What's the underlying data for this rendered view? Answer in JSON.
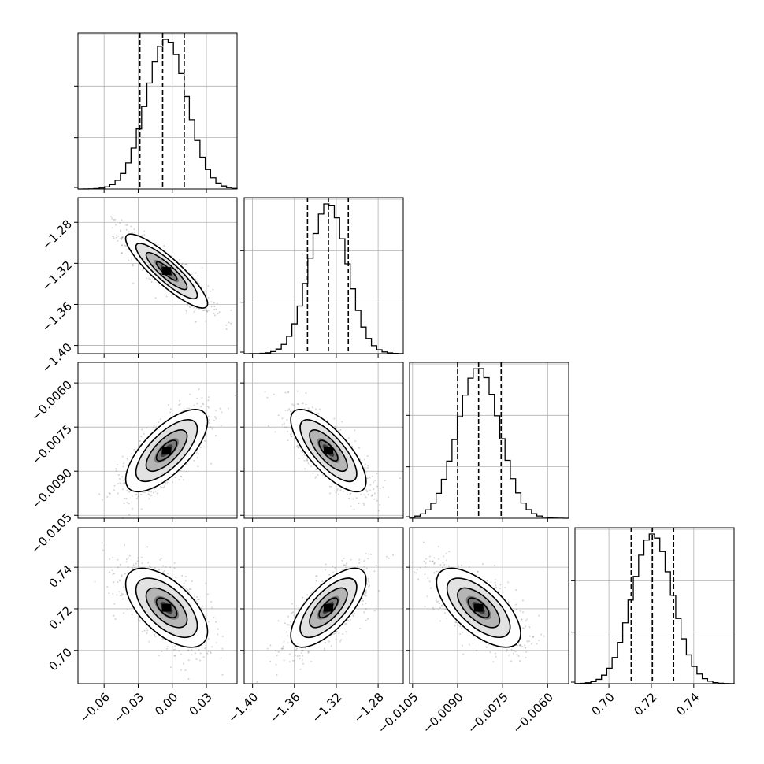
{
  "chart_data": {
    "type": "corner",
    "n_params": 4,
    "grid": true,
    "colors": {
      "hist": "#000000",
      "scatter": "#808080",
      "grid": "#b0b0b0",
      "contour": "#000000"
    },
    "params": [
      {
        "index": 0,
        "range": [
          -0.083,
          0.057
        ],
        "ticks": [
          "−0.06",
          "−0.03",
          "0.00",
          "0.03"
        ],
        "tick_values": [
          -0.06,
          -0.03,
          0.0,
          0.03
        ],
        "mean": -0.005,
        "sd": 0.018,
        "quantiles": [
          -0.0285,
          -0.0085,
          0.0105
        ]
      },
      {
        "index": 1,
        "range": [
          -1.408,
          -1.256
        ],
        "ticks": [
          "−1.40",
          "−1.36",
          "−1.32",
          "−1.28"
        ],
        "tick_values": [
          -1.4,
          -1.36,
          -1.32,
          -1.28
        ],
        "mean": -1.3275,
        "sd": 0.018,
        "quantiles": [
          -1.3475,
          -1.3275,
          -1.3085
        ]
      },
      {
        "index": 2,
        "range": [
          -0.0106,
          -0.0053
        ],
        "ticks": [
          "−0.0105",
          "−0.0090",
          "−0.0075",
          "−0.0060"
        ],
        "tick_values": [
          -0.0105,
          -0.009,
          -0.0075,
          -0.006
        ],
        "mean": -0.0083,
        "sd": 0.0007,
        "quantiles": [
          -0.009,
          -0.0083,
          -0.00755
        ]
      },
      {
        "index": 3,
        "range": [
          0.684,
          0.759
        ],
        "ticks": [
          "0.70",
          "0.72",
          "0.74"
        ],
        "tick_values": [
          0.7,
          0.72,
          0.74
        ],
        "mean": 0.7205,
        "sd": 0.0095,
        "quantiles": [
          0.7105,
          0.7205,
          0.7305
        ]
      }
    ],
    "correlations": {
      "1-0": -0.88,
      "2-0": 0.7,
      "2-1": -0.75,
      "3-0": -0.6,
      "3-1": 0.7,
      "3-2": -0.65
    }
  }
}
